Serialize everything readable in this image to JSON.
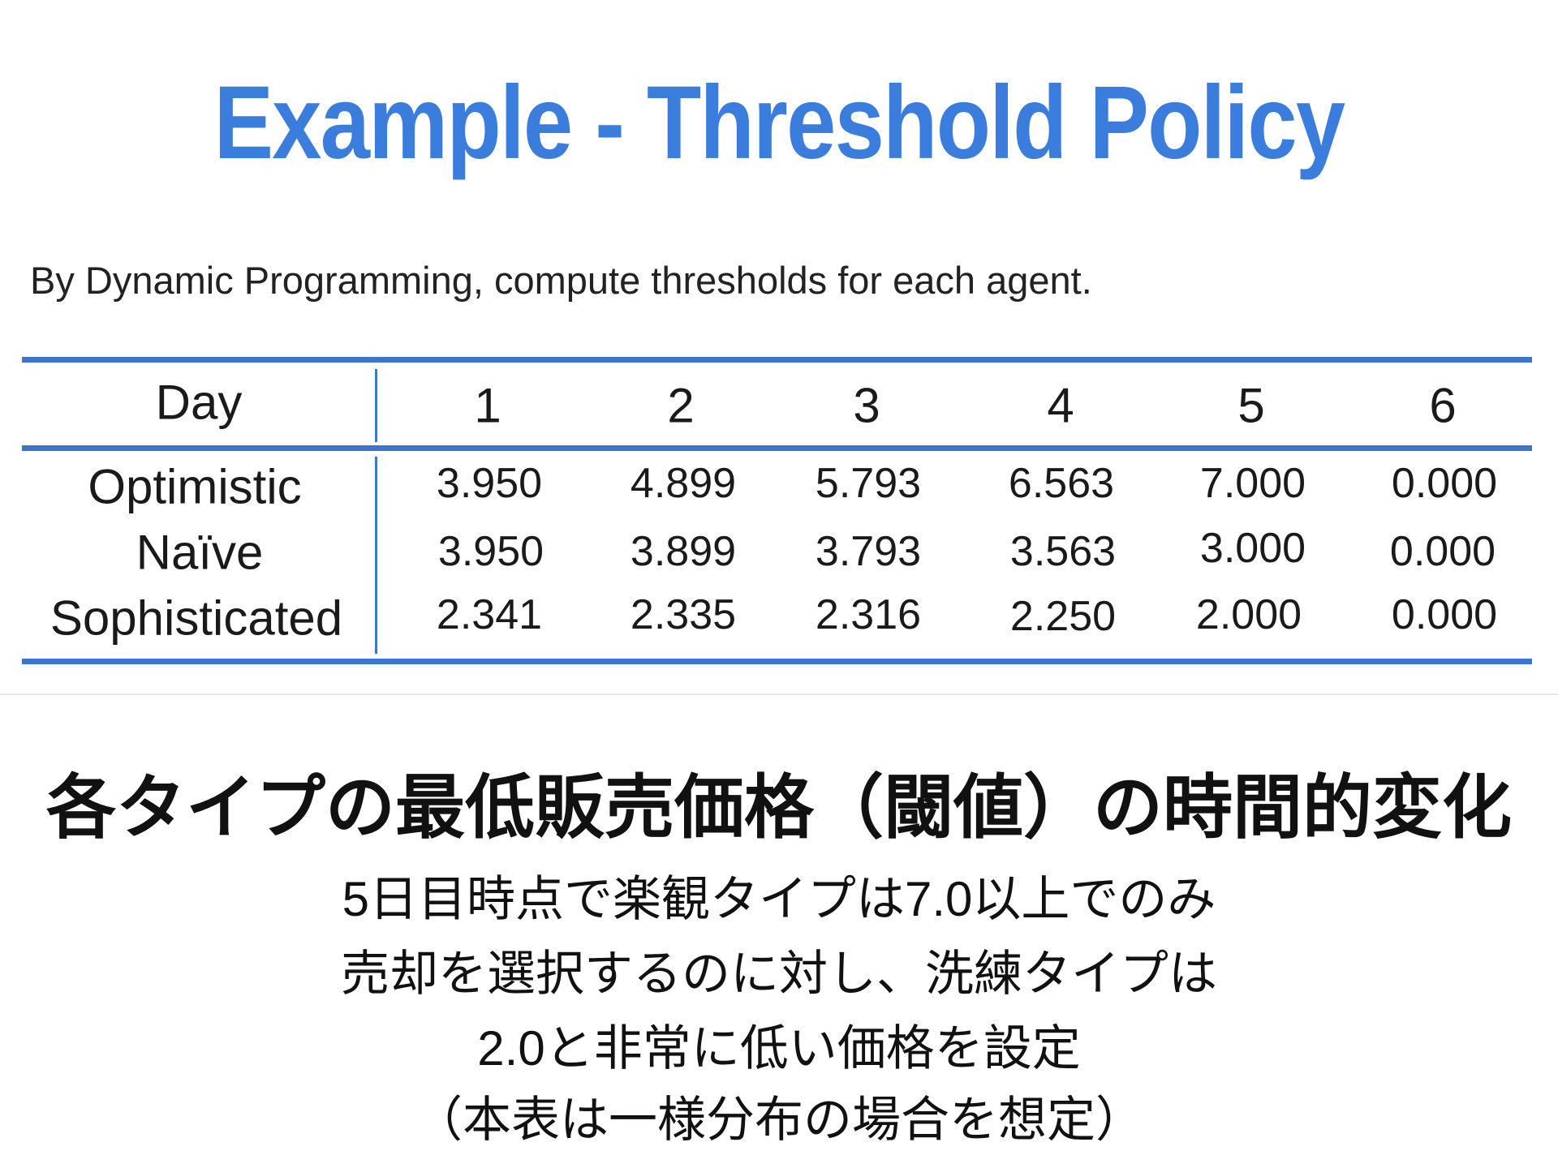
{
  "title": "Example - Threshold Policy",
  "subtitle": "By Dynamic Programming, compute thresholds for each agent.",
  "accent_color": "#3b7ddd",
  "table": {
    "header_label": "Day",
    "columns": [
      "1",
      "2",
      "3",
      "4",
      "5",
      "6"
    ],
    "rows": [
      {
        "label": "Optimistic",
        "values": [
          "3.950",
          "4.899",
          "5.793",
          "6.563",
          "7.000",
          "0.000"
        ]
      },
      {
        "label": "Naïve",
        "values": [
          "3.950",
          "3.899",
          "3.793",
          "3.563",
          "3.000",
          "0.000"
        ]
      },
      {
        "label": "Sophisticated",
        "values": [
          "2.341",
          "2.335",
          "2.316",
          "2.250",
          "2.000",
          "0.000"
        ]
      }
    ]
  },
  "caption": {
    "heading": "各タイプの最低販売価格（閾値）の時間的変化",
    "lines": [
      "5日目時点で楽観タイプは7.0以上でのみ",
      "売却を選択するのに対し、洗練タイプは",
      "2.0と非常に低い価格を設定",
      "（本表は一様分布の場合を想定）"
    ]
  }
}
